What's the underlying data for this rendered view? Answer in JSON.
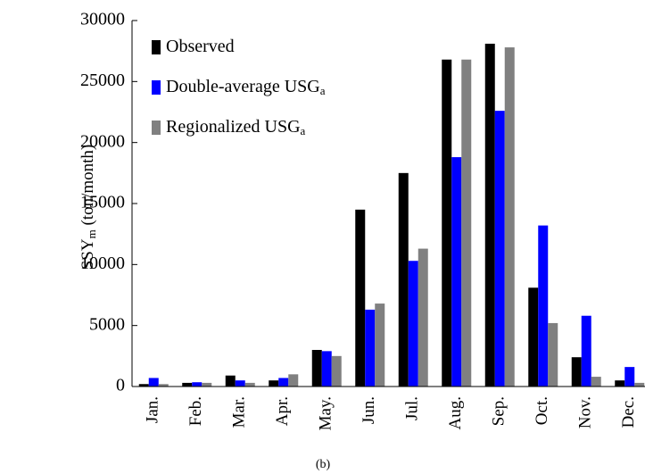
{
  "chart_data": {
    "type": "bar",
    "ylabel": {
      "main": "SSY",
      "sub": "m",
      "rest": " (ton/month)"
    },
    "caption": "(b)",
    "categories": [
      "Jan.",
      "Feb.",
      "Mar.",
      "Apr.",
      "May.",
      "Jun.",
      "Jul.",
      "Aug.",
      "Sep.",
      "Oct.",
      "Nov.",
      "Dec."
    ],
    "series": [
      {
        "name": "Observed",
        "color": "#000000",
        "values": [
          200,
          300,
          900,
          500,
          3000,
          14500,
          17500,
          26800,
          28100,
          8100,
          2400,
          500
        ]
      },
      {
        "name": "Double-average USG",
        "name_sub": "a",
        "color": "#0000ff",
        "values": [
          700,
          350,
          500,
          700,
          2900,
          6300,
          10300,
          18800,
          22600,
          13200,
          5800,
          1600
        ]
      },
      {
        "name": "Regionalized USG",
        "name_sub": "a",
        "color": "#808080",
        "values": [
          200,
          300,
          300,
          1000,
          2500,
          6800,
          11300,
          26800,
          27800,
          5200,
          800,
          300
        ]
      }
    ],
    "ylim": [
      0,
      30000
    ],
    "yticks": [
      0,
      5000,
      10000,
      15000,
      20000,
      25000,
      30000
    ],
    "grid": false
  }
}
